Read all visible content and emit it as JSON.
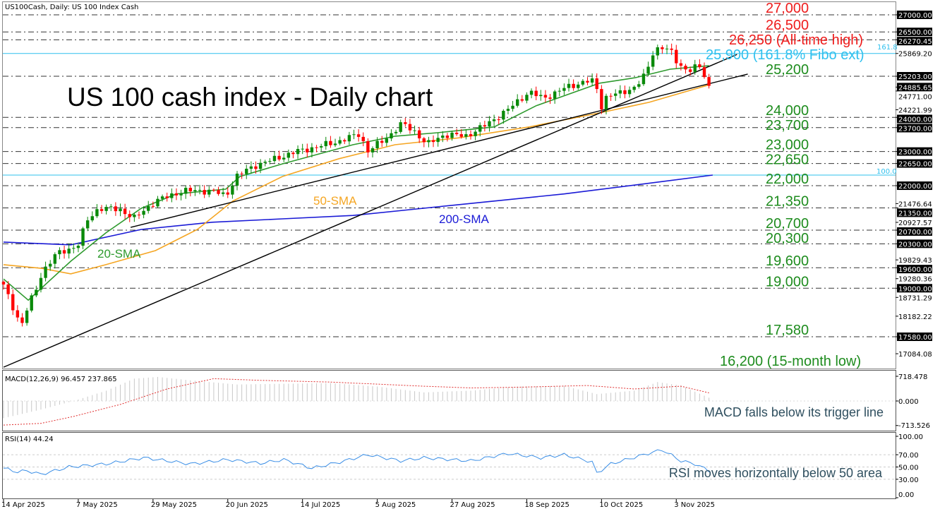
{
  "header": {
    "title": "US100Cash, Daily:  US 100 Index Cash"
  },
  "chart_title": "US 100 cash index - Daily chart",
  "colors": {
    "up": "#0a8a0a",
    "down": "#ff0000",
    "sma20": "#2e9a2e",
    "sma50": "#f5a623",
    "sma200": "#1a1ad6",
    "fibo": "#2fc0ee",
    "resist": "#ee1c1c",
    "support": "#1e8c1e",
    "rsi": "#3a8ee6",
    "macd_signal": "#e03030",
    "macd_hist": "#c8c8c8"
  },
  "annotations": {
    "sma20": "20-SMA",
    "sma50": "50-SMA",
    "sma200": "200-SMA",
    "macd_note": "MACD falls below its trigger line",
    "rsi_note": "RSI moves horizontally below 50 area",
    "fibo_1618": "161.8",
    "fibo_100": "100.0"
  },
  "levels": [
    {
      "price": 27000,
      "label": "27,000",
      "kind": "resistance"
    },
    {
      "price": 26500,
      "label": "26,500",
      "kind": "resistance"
    },
    {
      "price": 26270,
      "label": "26,250 (All-time high)",
      "kind": "resistance"
    },
    {
      "price": 25869.2,
      "label": "25,900 (161.8% Fibo ext)",
      "kind": "fibo"
    },
    {
      "price": 25203,
      "label": "25,200",
      "kind": "support"
    },
    {
      "price": 24000,
      "label": "24,000",
      "kind": "support"
    },
    {
      "price": 23700,
      "label": "23,700",
      "kind": "support"
    },
    {
      "price": 23000,
      "label": "23,000",
      "kind": "support"
    },
    {
      "price": 22650,
      "label": "22,650",
      "kind": "support"
    },
    {
      "price": 22000,
      "label": "22,000",
      "kind": "support"
    },
    {
      "price": 21350,
      "label": "21,350",
      "kind": "support"
    },
    {
      "price": 20700,
      "label": "20,700",
      "kind": "support"
    },
    {
      "price": 20300,
      "label": "20,300",
      "kind": "support"
    },
    {
      "price": 19600,
      "label": "19,600",
      "kind": "support"
    },
    {
      "price": 19000,
      "label": "19,000",
      "kind": "support"
    },
    {
      "price": 17580,
      "label": "17,580",
      "kind": "support"
    },
    {
      "price": 16200,
      "label": "16,200 (15-month low)",
      "kind": "support"
    }
  ],
  "price_axis": {
    "boxed": [
      "27000.00",
      "26500.00",
      "26270.45",
      "25203.00",
      "24885.65",
      "24000.00",
      "23700.00",
      "23000.00",
      "22650.00",
      "22000.00",
      "21350.00",
      "20700.00",
      "20300.00",
      "19600.00",
      "19000.00",
      "17580.00"
    ],
    "plain": [
      "25869.20",
      "24771.00",
      "24221.99",
      "21476.64",
      "20927.57",
      "19829.43",
      "19280.36",
      "18731.29",
      "18182.22",
      "17084.08"
    ]
  },
  "chart_data": {
    "type": "candlestick",
    "title": "US 100 cash index - Daily chart",
    "ylim": [
      16200,
      27300
    ],
    "x_tick_labels": [
      "14 Apr 2025",
      "7 May 2025",
      "29 May 2025",
      "20 Jun 2025",
      "14 Jul 2025",
      "5 Aug 2025",
      "27 Aug 2025",
      "18 Sep 2025",
      "10 Oct 2025",
      "3 Nov 2025"
    ],
    "x_tick_bars": [
      0,
      16,
      32,
      48,
      64,
      80,
      96,
      112,
      128,
      144
    ],
    "n_bars": 152,
    "close_anchors": [
      [
        0,
        19070
      ],
      [
        1.5,
        18600
      ],
      [
        3.8,
        17900
      ],
      [
        5.3,
        18500
      ],
      [
        6.8,
        18900
      ],
      [
        8.3,
        19480
      ],
      [
        11.3,
        20000
      ],
      [
        15.9,
        20250
      ],
      [
        18,
        21000
      ],
      [
        20.4,
        21350
      ],
      [
        25,
        21300
      ],
      [
        28,
        21050
      ],
      [
        32.5,
        21550
      ],
      [
        38.5,
        21850
      ],
      [
        44.6,
        21850
      ],
      [
        47.6,
        21700
      ],
      [
        49.8,
        22270
      ],
      [
        53.6,
        22580
      ],
      [
        58.2,
        22790
      ],
      [
        62.7,
        23000
      ],
      [
        67.2,
        23140
      ],
      [
        71.8,
        23300
      ],
      [
        76.3,
        23520
      ],
      [
        77.8,
        23000
      ],
      [
        81.6,
        23350
      ],
      [
        85.3,
        23820
      ],
      [
        88.4,
        23550
      ],
      [
        90.6,
        23200
      ],
      [
        94.4,
        23500
      ],
      [
        98.9,
        23450
      ],
      [
        103.5,
        23800
      ],
      [
        108,
        24230
      ],
      [
        112.5,
        24750
      ],
      [
        115.6,
        24550
      ],
      [
        120,
        24850
      ],
      [
        124.6,
        25060
      ],
      [
        126.9,
        25050
      ],
      [
        127.3,
        24130
      ],
      [
        129.2,
        24650
      ],
      [
        132.2,
        24700
      ],
      [
        135.2,
        24900
      ],
      [
        137.5,
        25260
      ],
      [
        139,
        25880
      ],
      [
        140.5,
        26090
      ],
      [
        142.7,
        25950
      ],
      [
        144.3,
        25570
      ],
      [
        146.5,
        25370
      ],
      [
        148.8,
        25500
      ],
      [
        150.3,
        25150
      ],
      [
        151,
        24890
      ]
    ],
    "sma20": [
      [
        0,
        19270
      ],
      [
        5.3,
        18650
      ],
      [
        14.4,
        19790
      ],
      [
        21.9,
        20620
      ],
      [
        29.5,
        21340
      ],
      [
        37,
        21760
      ],
      [
        47.6,
        21900
      ],
      [
        50.6,
        22270
      ],
      [
        59.7,
        22640
      ],
      [
        74.8,
        23200
      ],
      [
        83.8,
        23450
      ],
      [
        92.9,
        23550
      ],
      [
        105,
        23720
      ],
      [
        114,
        24340
      ],
      [
        127.6,
        25000
      ],
      [
        135.2,
        25160
      ],
      [
        142.7,
        25410
      ],
      [
        151,
        25510
      ]
    ],
    "sma50": [
      [
        0,
        19690
      ],
      [
        8.3,
        19580
      ],
      [
        14.4,
        19420
      ],
      [
        21.9,
        19690
      ],
      [
        32.5,
        20100
      ],
      [
        41.5,
        20720
      ],
      [
        49.1,
        21550
      ],
      [
        59.7,
        22270
      ],
      [
        71.8,
        22790
      ],
      [
        83.8,
        23200
      ],
      [
        97.4,
        23400
      ],
      [
        112.5,
        23720
      ],
      [
        127.6,
        24130
      ],
      [
        138.2,
        24440
      ],
      [
        151,
        24950
      ]
    ],
    "sma200": [
      [
        0,
        20350
      ],
      [
        14.4,
        20270
      ],
      [
        29.5,
        20720
      ],
      [
        44.6,
        20930
      ],
      [
        59.7,
        21030
      ],
      [
        74.8,
        21130
      ],
      [
        89.9,
        21340
      ],
      [
        105,
        21550
      ],
      [
        120,
        21760
      ],
      [
        135.2,
        22020
      ],
      [
        151.8,
        22310
      ]
    ],
    "trendlines": [
      {
        "from": [
          0,
          16690
        ],
        "to": [
          157,
          25840
        ]
      },
      {
        "from": [
          27.2,
          20780
        ],
        "to": [
          159.3,
          25265
        ]
      }
    ],
    "fibo_levels": [
      {
        "label": "161.8",
        "price": 25869.2
      },
      {
        "label": "100.0",
        "price": 22310
      }
    ],
    "macd": {
      "label": "MACD(12,26,9) 96.457 237.865",
      "params": [
        12,
        26,
        9
      ],
      "main": 96.457,
      "signal_value": 237.865,
      "ylim": [
        -713.526,
        718.478
      ],
      "tick_labels": [
        "718.478",
        "0.000",
        "-713.526"
      ],
      "hist_anchors": [
        [
          0,
          -500
        ],
        [
          8,
          -250
        ],
        [
          15,
          0
        ],
        [
          22,
          300
        ],
        [
          28,
          650
        ],
        [
          33,
          700
        ],
        [
          40,
          600
        ],
        [
          50,
          480
        ],
        [
          60,
          500
        ],
        [
          70,
          520
        ],
        [
          80,
          420
        ],
        [
          90,
          250
        ],
        [
          100,
          300
        ],
        [
          110,
          420
        ],
        [
          120,
          440
        ],
        [
          127,
          200
        ],
        [
          135,
          300
        ],
        [
          140,
          550
        ],
        [
          145,
          450
        ],
        [
          151,
          96
        ]
      ],
      "signal_anchors": [
        [
          0,
          -700
        ],
        [
          8,
          -650
        ],
        [
          15,
          -450
        ],
        [
          25,
          -100
        ],
        [
          35,
          350
        ],
        [
          45,
          650
        ],
        [
          55,
          600
        ],
        [
          70,
          550
        ],
        [
          90,
          430
        ],
        [
          100,
          380
        ],
        [
          110,
          400
        ],
        [
          125,
          450
        ],
        [
          135,
          350
        ],
        [
          145,
          430
        ],
        [
          151,
          237
        ]
      ]
    },
    "rsi": {
      "label": "RSI(14) 44.24",
      "period": 14,
      "value": 44.24,
      "ylim": [
        0,
        100
      ],
      "tick_labels": [
        "100.00",
        "70.00",
        "50.00",
        "30.00",
        "0.00"
      ],
      "anchors": [
        [
          0,
          48
        ],
        [
          3,
          42
        ],
        [
          5,
          44
        ],
        [
          8,
          38
        ],
        [
          14,
          50
        ],
        [
          22,
          55
        ],
        [
          30,
          65
        ],
        [
          40,
          55
        ],
        [
          48,
          62
        ],
        [
          55,
          56
        ],
        [
          60,
          62
        ],
        [
          66,
          48
        ],
        [
          72,
          58
        ],
        [
          78,
          70
        ],
        [
          85,
          60
        ],
        [
          90,
          65
        ],
        [
          100,
          60
        ],
        [
          108,
          72
        ],
        [
          115,
          65
        ],
        [
          120,
          70
        ],
        [
          126,
          58
        ],
        [
          127,
          40
        ],
        [
          130,
          55
        ],
        [
          138,
          72
        ],
        [
          141,
          78
        ],
        [
          145,
          60
        ],
        [
          148,
          55
        ],
        [
          151,
          44
        ]
      ]
    }
  }
}
